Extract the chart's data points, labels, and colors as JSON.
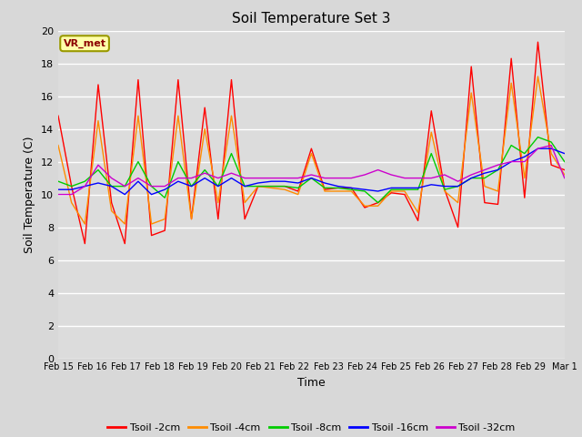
{
  "title": "Soil Temperature Set 3",
  "xlabel": "Time",
  "ylabel": "Soil Temperature (C)",
  "ylim": [
    0,
    20
  ],
  "yticks": [
    0,
    2,
    4,
    6,
    8,
    10,
    12,
    14,
    16,
    18,
    20
  ],
  "xlim": [
    0,
    15
  ],
  "fig_facecolor": "#d8d8d8",
  "plot_bg": "#dcdcdc",
  "annotation_text": "VR_met",
  "legend_labels": [
    "Tsoil -2cm",
    "Tsoil -4cm",
    "Tsoil -8cm",
    "Tsoil -16cm",
    "Tsoil -32cm"
  ],
  "colors": [
    "#ff0000",
    "#ff8c00",
    "#00cc00",
    "#0000ff",
    "#cc00cc"
  ],
  "xtick_labels": [
    "Feb 15",
    "Feb 16",
    "Feb 17",
    "Feb 18",
    "Feb 19",
    "Feb 20",
    "Feb 21",
    "Feb 22",
    "Feb 23",
    "Feb 24",
    "Feb 25",
    "Feb 26",
    "Feb 27",
    "Feb 28",
    "Feb 29",
    "Mar 1"
  ],
  "tsoil_2cm": [
    14.8,
    10.5,
    7.0,
    16.7,
    9.5,
    7.0,
    17.0,
    7.5,
    7.8,
    17.0,
    8.5,
    15.3,
    8.5,
    17.0,
    8.5,
    10.5,
    10.5,
    10.5,
    10.2,
    12.8,
    10.3,
    10.4,
    10.4,
    9.2,
    9.5,
    10.1,
    10.0,
    8.4,
    15.1,
    10.3,
    8.0,
    17.8,
    9.5,
    9.4,
    18.3,
    9.8,
    19.3,
    11.8,
    11.5
  ],
  "tsoil_4cm": [
    13.0,
    9.5,
    8.2,
    14.5,
    9.0,
    8.2,
    14.8,
    8.2,
    8.5,
    14.8,
    8.5,
    14.0,
    9.5,
    14.8,
    9.5,
    10.5,
    10.4,
    10.3,
    10.0,
    12.5,
    10.2,
    10.2,
    10.2,
    9.3,
    9.3,
    10.2,
    10.2,
    8.9,
    13.8,
    10.2,
    9.5,
    16.2,
    10.5,
    10.2,
    16.8,
    11.0,
    17.2,
    12.5,
    11.2
  ],
  "tsoil_8cm": [
    10.8,
    10.5,
    10.8,
    11.5,
    10.5,
    10.5,
    12.0,
    10.5,
    9.8,
    12.0,
    10.5,
    11.5,
    10.5,
    12.5,
    10.5,
    10.5,
    10.5,
    10.5,
    10.4,
    11.0,
    10.4,
    10.4,
    10.3,
    10.2,
    9.5,
    10.3,
    10.3,
    10.3,
    12.5,
    10.3,
    10.5,
    11.0,
    11.0,
    11.5,
    13.0,
    12.5,
    13.5,
    13.2,
    12.0
  ],
  "tsoil_16cm": [
    10.3,
    10.3,
    10.5,
    10.7,
    10.5,
    10.0,
    10.8,
    10.0,
    10.3,
    10.8,
    10.5,
    11.0,
    10.5,
    11.0,
    10.5,
    10.7,
    10.8,
    10.8,
    10.7,
    11.0,
    10.7,
    10.5,
    10.4,
    10.3,
    10.2,
    10.4,
    10.4,
    10.4,
    10.6,
    10.5,
    10.5,
    11.0,
    11.3,
    11.5,
    12.0,
    12.3,
    12.8,
    12.8,
    12.5
  ],
  "tsoil_32cm": [
    10.0,
    10.0,
    10.5,
    11.8,
    11.0,
    10.5,
    11.0,
    10.5,
    10.5,
    11.0,
    11.0,
    11.3,
    11.0,
    11.3,
    11.0,
    11.0,
    11.0,
    11.0,
    11.0,
    11.2,
    11.0,
    11.0,
    11.0,
    11.2,
    11.5,
    11.2,
    11.0,
    11.0,
    11.0,
    11.2,
    10.8,
    11.2,
    11.5,
    11.8,
    12.0,
    12.0,
    12.8,
    13.0,
    11.0
  ]
}
